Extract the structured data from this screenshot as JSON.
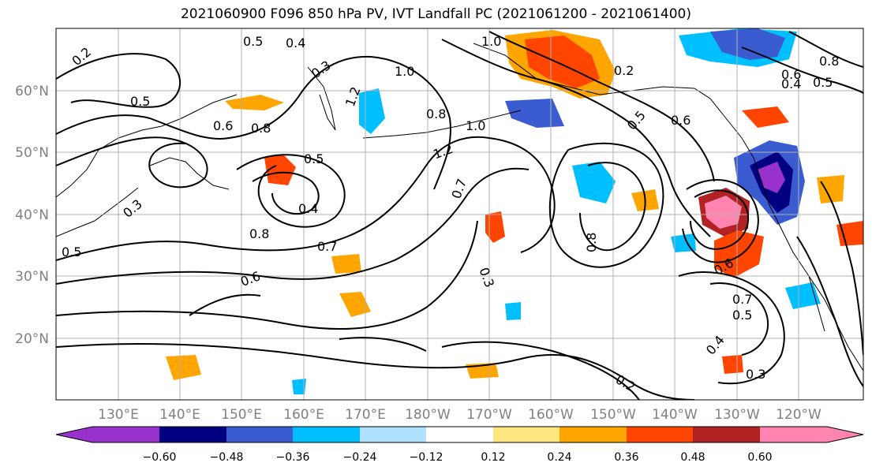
{
  "title": "2021060900 F096 850 hPa PV, IVT Landfall PC (2021061200 - 2021061400)",
  "map": {
    "lat_labels": [
      "60°N",
      "50°N",
      "40°N",
      "30°N",
      "20°N"
    ],
    "lon_labels": [
      "130°E",
      "140°E",
      "150°E",
      "160°E",
      "170°E",
      "180°W",
      "170°W",
      "160°W",
      "150°W",
      "140°W",
      "130°W",
      "120°W"
    ],
    "contour_labels": [
      "0.2",
      "0.5",
      "0.4",
      "0.3",
      "0.6",
      "0.8",
      "0.5",
      "1.0",
      "1.2",
      "1.0",
      "0.8",
      "1.0",
      "1.2",
      "0.7",
      "0.4",
      "0.5",
      "0.8",
      "0.7",
      "0.3",
      "0.8",
      "0.5",
      "0.6",
      "0.2",
      "0.8",
      "0.6",
      "0.4",
      "0.5",
      "0.7",
      "0.5",
      "0.4",
      "0.3",
      "0.6",
      "0.3",
      "0.6",
      "0.2",
      "0.5"
    ]
  },
  "colorbar": {
    "ticks": [
      "−0.60",
      "−0.48",
      "−0.36",
      "−0.24",
      "−0.12",
      "0.12",
      "0.24",
      "0.36",
      "0.48",
      "0.60"
    ],
    "colors": [
      "#9932cc",
      "#000080",
      "#3b5bd0",
      "#00bfff",
      "#b0e2ff",
      "#ffffff",
      "#ffe680",
      "#ffa500",
      "#ff4500",
      "#b22222",
      "#ff85b0",
      "#ff85b0"
    ]
  }
}
